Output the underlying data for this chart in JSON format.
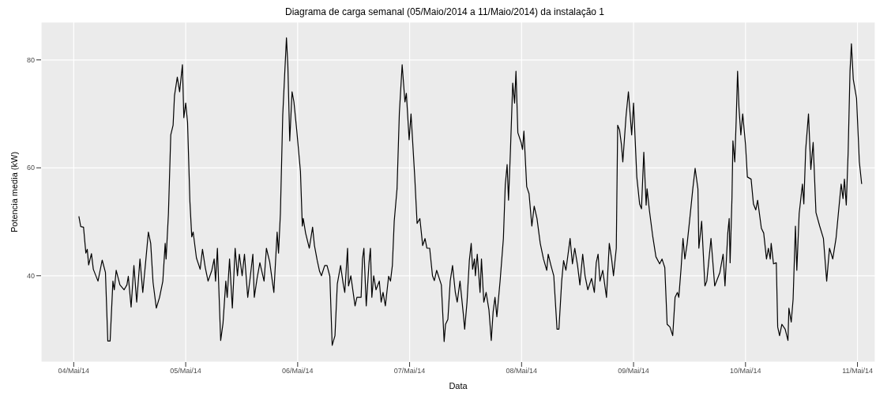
{
  "chart_data": {
    "type": "line",
    "title": "Diagrama de carga semanal (05/Maio/2014 a 11/Maio/2014) da instalação 1",
    "xlabel": "Data",
    "ylabel": "Potencia media (kW)",
    "x": [
      "2014-05-04T01:06",
      "2014-05-04T01:30",
      "2014-05-04T02:06",
      "2014-05-04T02:36",
      "2014-05-04T02:54",
      "2014-05-04T03:12",
      "2014-05-04T03:48",
      "2014-05-04T04:12",
      "2014-05-04T05:12",
      "2014-05-04T06:06",
      "2014-05-04T06:48",
      "2014-05-04T07:18",
      "2014-05-04T07:48",
      "2014-05-04T08:24",
      "2014-05-04T08:42",
      "2014-05-04T09:06",
      "2014-05-04T09:54",
      "2014-05-04T10:48",
      "2014-05-04T11:24",
      "2014-05-04T11:42",
      "2014-05-04T12:18",
      "2014-05-04T12:54",
      "2014-05-04T13:30",
      "2014-05-04T14:12",
      "2014-05-04T14:48",
      "2014-05-04T15:24",
      "2014-05-04T16:00",
      "2014-05-04T16:30",
      "2014-05-04T17:00",
      "2014-05-04T17:42",
      "2014-05-04T18:24",
      "2014-05-04T19:06",
      "2014-05-04T19:36",
      "2014-05-04T19:48",
      "2014-05-04T20:18",
      "2014-05-04T20:48",
      "2014-05-04T21:18",
      "2014-05-04T21:36",
      "2014-05-04T22:12",
      "2014-05-04T22:42",
      "2014-05-04T23:18",
      "2014-05-04T23:36",
      "2014-05-05T00:00",
      "2014-05-05T00:24",
      "2014-05-05T00:54",
      "2014-05-05T01:18",
      "2014-05-05T01:36",
      "2014-05-05T02:18",
      "2014-05-05T03:06",
      "2014-05-05T03:36",
      "2014-05-05T04:12",
      "2014-05-05T04:48",
      "2014-05-05T05:36",
      "2014-05-05T06:06",
      "2014-05-05T06:24",
      "2014-05-05T06:48",
      "2014-05-05T07:30",
      "2014-05-05T08:00",
      "2014-05-05T08:36",
      "2014-05-05T08:54",
      "2014-05-05T09:24",
      "2014-05-05T10:00",
      "2014-05-05T10:36",
      "2014-05-05T11:06",
      "2014-05-05T11:30",
      "2014-05-05T12:06",
      "2014-05-05T12:36",
      "2014-05-05T13:18",
      "2014-05-05T13:48",
      "2014-05-05T14:24",
      "2014-05-05T14:42",
      "2014-05-05T15:18",
      "2014-05-05T15:54",
      "2014-05-05T16:48",
      "2014-05-05T17:18",
      "2014-05-05T18:00",
      "2014-05-05T18:54",
      "2014-05-05T19:36",
      "2014-05-05T19:54",
      "2014-05-05T20:18",
      "2014-05-05T20:48",
      "2014-05-05T21:12",
      "2014-05-05T21:36",
      "2014-05-05T21:54",
      "2014-05-05T22:18",
      "2014-05-05T22:48",
      "2014-05-05T23:12",
      "2014-05-05T23:48",
      "2014-05-06T00:36",
      "2014-05-06T01:00",
      "2014-05-06T01:12",
      "2014-05-06T01:42",
      "2014-05-06T02:30",
      "2014-05-06T03:12",
      "2014-05-06T03:36",
      "2014-05-06T04:12",
      "2014-05-06T04:42",
      "2014-05-06T05:06",
      "2014-05-06T05:48",
      "2014-05-06T06:18",
      "2014-05-06T06:54",
      "2014-05-06T07:24",
      "2014-05-06T08:00",
      "2014-05-06T08:30",
      "2014-05-06T09:12",
      "2014-05-06T09:48",
      "2014-05-06T10:06",
      "2014-05-06T10:42",
      "2014-05-06T10:54",
      "2014-05-06T11:24",
      "2014-05-06T12:18",
      "2014-05-06T12:42",
      "2014-05-06T13:36",
      "2014-05-06T13:54",
      "2014-05-06T14:12",
      "2014-05-06T14:42",
      "2014-05-06T15:18",
      "2014-05-06T15:36",
      "2014-05-06T15:54",
      "2014-05-06T16:18",
      "2014-05-06T16:48",
      "2014-05-06T17:30",
      "2014-05-06T17:54",
      "2014-05-06T18:18",
      "2014-05-06T18:48",
      "2014-05-06T19:30",
      "2014-05-06T19:54",
      "2014-05-06T20:18",
      "2014-05-06T20:42",
      "2014-05-06T21:18",
      "2014-05-06T21:48",
      "2014-05-06T22:24",
      "2014-05-06T23:00",
      "2014-05-06T23:18",
      "2014-05-06T23:54",
      "2014-05-07T00:18",
      "2014-05-07T01:06",
      "2014-05-07T01:36",
      "2014-05-07T02:12",
      "2014-05-07T02:48",
      "2014-05-07T03:18",
      "2014-05-07T03:42",
      "2014-05-07T04:18",
      "2014-05-07T04:54",
      "2014-05-07T05:18",
      "2014-05-07T05:48",
      "2014-05-07T06:48",
      "2014-05-07T07:24",
      "2014-05-07T07:42",
      "2014-05-07T08:12",
      "2014-05-07T08:42",
      "2014-05-07T09:12",
      "2014-05-07T09:48",
      "2014-05-07T10:12",
      "2014-05-07T10:48",
      "2014-05-07T11:30",
      "2014-05-07T11:48",
      "2014-05-07T12:18",
      "2014-05-07T12:48",
      "2014-05-07T13:12",
      "2014-05-07T13:30",
      "2014-05-07T13:54",
      "2014-05-07T14:06",
      "2014-05-07T14:30",
      "2014-05-07T15:06",
      "2014-05-07T15:24",
      "2014-05-07T15:54",
      "2014-05-07T16:24",
      "2014-05-07T17:00",
      "2014-05-07T17:30",
      "2014-05-07T17:54",
      "2014-05-07T18:18",
      "2014-05-07T18:42",
      "2014-05-07T19:24",
      "2014-05-07T20:06",
      "2014-05-07T20:30",
      "2014-05-07T20:54",
      "2014-05-07T21:12",
      "2014-05-07T21:36",
      "2014-05-07T22:06",
      "2014-05-07T22:30",
      "2014-05-07T22:48",
      "2014-05-07T23:12",
      "2014-05-07T23:54",
      "2014-05-08T00:12",
      "2014-05-08T00:30",
      "2014-05-08T01:06",
      "2014-05-08T01:36",
      "2014-05-08T02:12",
      "2014-05-08T02:42",
      "2014-05-08T03:18",
      "2014-05-08T04:00",
      "2014-05-08T04:42",
      "2014-05-08T05:24",
      "2014-05-08T05:42",
      "2014-05-08T06:18",
      "2014-05-08T06:54",
      "2014-05-08T07:36",
      "2014-05-08T08:00",
      "2014-05-08T08:36",
      "2014-05-08T09:00",
      "2014-05-08T09:30",
      "2014-05-08T10:06",
      "2014-05-08T10:24",
      "2014-05-08T10:54",
      "2014-05-08T11:24",
      "2014-05-08T12:00",
      "2014-05-08T12:30",
      "2014-05-08T13:06",
      "2014-05-08T13:36",
      "2014-05-08T14:12",
      "2014-05-08T15:00",
      "2014-05-08T15:36",
      "2014-05-08T16:00",
      "2014-05-08T16:24",
      "2014-05-08T16:48",
      "2014-05-08T17:24",
      "2014-05-08T18:12",
      "2014-05-08T18:48",
      "2014-05-08T19:18",
      "2014-05-08T19:42",
      "2014-05-08T20:18",
      "2014-05-08T20:36",
      "2014-05-08T21:00",
      "2014-05-08T21:24",
      "2014-05-08T21:42",
      "2014-05-08T22:24",
      "2014-05-08T22:54",
      "2014-05-08T23:36",
      "2014-05-09T00:00",
      "2014-05-09T00:42",
      "2014-05-09T01:18",
      "2014-05-09T01:42",
      "2014-05-09T02:12",
      "2014-05-09T02:42",
      "2014-05-09T02:54",
      "2014-05-09T03:24",
      "2014-05-09T04:06",
      "2014-05-09T04:48",
      "2014-05-09T05:36",
      "2014-05-09T06:06",
      "2014-05-09T06:42",
      "2014-05-09T07:12",
      "2014-05-09T07:48",
      "2014-05-09T08:24",
      "2014-05-09T08:54",
      "2014-05-09T09:24",
      "2014-05-09T09:42",
      "2014-05-09T10:12",
      "2014-05-09T10:36",
      "2014-05-09T11:00",
      "2014-05-09T11:30",
      "2014-05-09T12:00",
      "2014-05-09T12:42",
      "2014-05-09T13:12",
      "2014-05-09T13:48",
      "2014-05-09T14:00",
      "2014-05-09T14:36",
      "2014-05-09T15:18",
      "2014-05-09T15:42",
      "2014-05-09T16:36",
      "2014-05-09T17:24",
      "2014-05-09T18:30",
      "2014-05-09T19:12",
      "2014-05-09T19:36",
      "2014-05-09T20:12",
      "2014-05-09T20:30",
      "2014-05-09T20:42",
      "2014-05-09T21:06",
      "2014-05-09T21:18",
      "2014-05-09T21:42",
      "2014-05-09T22:00",
      "2014-05-09T22:18",
      "2014-05-09T22:36",
      "2014-05-09T23:00",
      "2014-05-09T23:24",
      "2014-05-10T00:00",
      "2014-05-10T00:24",
      "2014-05-10T01:12",
      "2014-05-10T01:42",
      "2014-05-10T02:12",
      "2014-05-10T02:36",
      "2014-05-10T03:24",
      "2014-05-10T03:54",
      "2014-05-10T04:30",
      "2014-05-10T04:54",
      "2014-05-10T05:18",
      "2014-05-10T05:30",
      "2014-05-10T06:00",
      "2014-05-10T06:36",
      "2014-05-10T06:54",
      "2014-05-10T07:18",
      "2014-05-10T07:48",
      "2014-05-10T08:30",
      "2014-05-10T09:06",
      "2014-05-10T09:18",
      "2014-05-10T09:48",
      "2014-05-10T10:12",
      "2014-05-10T10:42",
      "2014-05-10T11:00",
      "2014-05-10T11:30",
      "2014-05-10T12:12",
      "2014-05-10T12:30",
      "2014-05-10T12:54",
      "2014-05-10T13:30",
      "2014-05-10T14:00",
      "2014-05-10T14:30",
      "2014-05-10T15:06",
      "2014-05-10T15:54",
      "2014-05-10T16:42",
      "2014-05-10T17:24",
      "2014-05-10T18:00",
      "2014-05-10T18:42",
      "2014-05-10T19:24",
      "2014-05-10T19:54",
      "2014-05-10T20:30",
      "2014-05-10T20:54",
      "2014-05-10T21:12",
      "2014-05-10T21:36",
      "2014-05-10T22:00",
      "2014-05-10T22:24",
      "2014-05-10T22:42",
      "2014-05-10T23:06",
      "2014-05-10T23:48",
      "2014-05-11T00:24",
      "2014-05-11T00:54"
    ],
    "series": [
      {
        "color": "#000000",
        "values": [
          51.0,
          49.1,
          49.0,
          44.2,
          44.9,
          42.0,
          44.1,
          41.2,
          39.0,
          42.9,
          40.6,
          27.9,
          27.9,
          39.0,
          37.4,
          41.0,
          38.3,
          37.4,
          38.3,
          39.9,
          34.2,
          41.9,
          35.1,
          43.1,
          36.9,
          42.4,
          48.1,
          46.0,
          38.8,
          34.0,
          36.0,
          39.0,
          46.0,
          43.1,
          51.5,
          66.1,
          67.9,
          73.4,
          76.8,
          74.1,
          79.1,
          69.3,
          72.0,
          68.4,
          53.8,
          47.2,
          48.1,
          43.3,
          41.2,
          44.9,
          41.5,
          39.0,
          41.0,
          43.1,
          39.0,
          45.1,
          28.0,
          31.2,
          39.0,
          36.0,
          43.1,
          34.0,
          45.1,
          40.0,
          44.0,
          40.0,
          44.0,
          36.0,
          39.5,
          44.0,
          36.0,
          39.5,
          42.4,
          39.0,
          45.1,
          42.6,
          36.9,
          48.1,
          44.2,
          51.5,
          69.7,
          77.0,
          84.1,
          78.9,
          65.0,
          74.1,
          72.2,
          67.0,
          59.3,
          49.2,
          50.6,
          47.9,
          45.1,
          49.0,
          45.6,
          42.8,
          40.8,
          40.0,
          41.9,
          41.9,
          39.9,
          27.1,
          28.9,
          38.5,
          41.9,
          38.3,
          36.9,
          45.1,
          38.1,
          40.0,
          34.4,
          36.0,
          36.0,
          43.1,
          45.1,
          34.4,
          42.4,
          45.1,
          36.0,
          40.0,
          37.4,
          39.0,
          35.1,
          36.9,
          34.4,
          39.9,
          39.0,
          41.9,
          50.1,
          56.1,
          70.2,
          79.1,
          72.2,
          73.8,
          65.2,
          70.0,
          58.3,
          49.7,
          50.6,
          45.6,
          46.9,
          45.1,
          45.1,
          40.0,
          39.1,
          41.0,
          38.3,
          27.8,
          31.0,
          31.9,
          39.0,
          41.9,
          36.9,
          35.1,
          39.0,
          33.0,
          30.1,
          35.1,
          42.8,
          46.0,
          41.2,
          43.1,
          40.0,
          44.0,
          36.9,
          43.1,
          35.1,
          36.9,
          33.7,
          28.0,
          33.3,
          36.0,
          32.4,
          39.1,
          46.9,
          56.8,
          60.6,
          54.0,
          62.9,
          75.7,
          72.0,
          77.9,
          66.5,
          64.7,
          63.4,
          66.8,
          56.5,
          55.2,
          49.2,
          52.9,
          50.6,
          46.0,
          43.1,
          41.0,
          44.0,
          41.9,
          40.0,
          30.1,
          30.1,
          39.0,
          42.8,
          41.0,
          44.9,
          46.9,
          42.2,
          45.1,
          41.9,
          38.3,
          44.0,
          40.0,
          37.4,
          39.5,
          36.9,
          42.4,
          44.0,
          39.0,
          41.0,
          36.0,
          46.0,
          43.1,
          40.0,
          45.1,
          67.9,
          67.0,
          64.3,
          61.1,
          69.7,
          74.1,
          66.1,
          72.0,
          58.3,
          53.3,
          52.4,
          62.9,
          53.1,
          56.1,
          52.1,
          47.4,
          43.5,
          42.2,
          43.1,
          41.5,
          31.0,
          30.5,
          28.9,
          36.0,
          36.9,
          36.0,
          41.5,
          46.9,
          43.1,
          46.0,
          50.1,
          56.1,
          59.9,
          56.1,
          45.1,
          50.1,
          38.1,
          39.0,
          46.9,
          38.1,
          40.6,
          44.0,
          38.1,
          47.9,
          50.6,
          42.4,
          54.5,
          65.0,
          61.1,
          68.8,
          77.9,
          71.1,
          66.1,
          70.0,
          64.3,
          58.3,
          57.9,
          53.3,
          52.2,
          54.0,
          48.8,
          47.9,
          43.1,
          45.1,
          43.1,
          46.0,
          42.2,
          42.4,
          30.5,
          28.9,
          31.0,
          30.1,
          28.0,
          34.0,
          31.4,
          35.6,
          49.2,
          41.0,
          51.5,
          57.0,
          53.3,
          63.4,
          70.0,
          59.7,
          64.7,
          51.7,
          49.2,
          46.9,
          39.0,
          45.1,
          43.1,
          46.9,
          51.5,
          57.0,
          54.3,
          57.9,
          53.1,
          62.9,
          77.9,
          83.0,
          76.4,
          72.9,
          61.1,
          57.0
        ]
      }
    ],
    "xlim": [
      "2014-05-03T17:00",
      "2014-05-11T03:48"
    ],
    "xticks": [
      {
        "value": "2014-05-04",
        "label": "04/Mai/14"
      },
      {
        "value": "2014-05-05",
        "label": "05/Mai/14"
      },
      {
        "value": "2014-05-06",
        "label": "06/Mai/14"
      },
      {
        "value": "2014-05-07",
        "label": "07/Mai/14"
      },
      {
        "value": "2014-05-08",
        "label": "08/Mai/14"
      },
      {
        "value": "2014-05-09",
        "label": "09/Mai/14"
      },
      {
        "value": "2014-05-10",
        "label": "10/Mai/14"
      },
      {
        "value": "2014-05-11",
        "label": "11/Mai/14"
      }
    ],
    "ylim": [
      24,
      87
    ],
    "yticks": [
      40,
      60,
      80
    ],
    "grid": true
  }
}
